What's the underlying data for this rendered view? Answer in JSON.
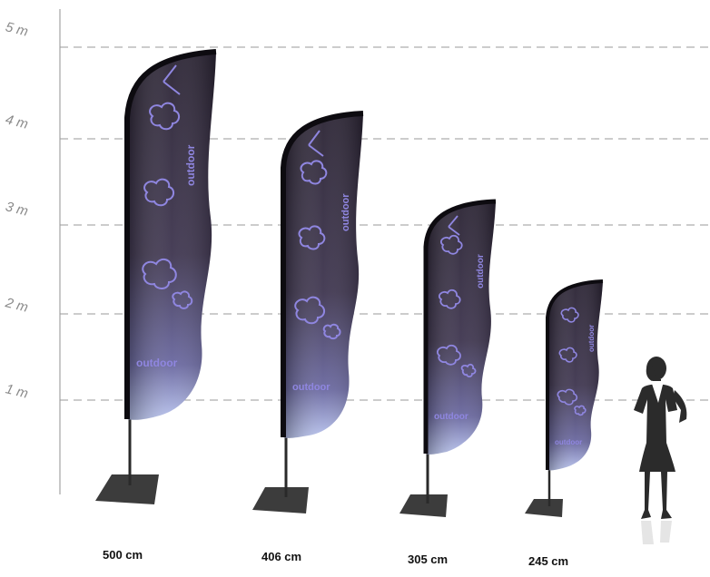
{
  "scale": {
    "labels": [
      "5 m",
      "4 m",
      "3 m",
      "2 m",
      "1 m"
    ]
  },
  "flags": [
    {
      "size_label": "500 cm",
      "height_cm": 500
    },
    {
      "size_label": "406 cm",
      "height_cm": 406
    },
    {
      "size_label": "305 cm",
      "height_cm": 305
    },
    {
      "size_label": "245 cm",
      "height_cm": 245
    }
  ],
  "flag_print": {
    "brand_top": "outdoor",
    "brand_bottom": "outdoor"
  },
  "colors": {
    "flag_dark": "#2a2333",
    "flag_mid": "#4a4060",
    "flag_light": "#b8c3ee",
    "print_violet": "#8f86e0",
    "gridline": "#9a9a9a",
    "base": "#3c3c3c"
  },
  "figure": {
    "icon": "woman-silhouette-icon"
  }
}
